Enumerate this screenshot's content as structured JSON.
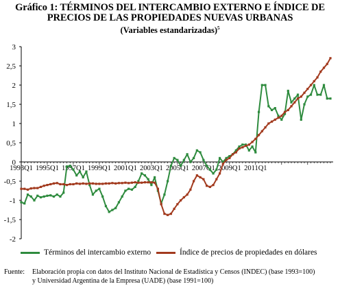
{
  "title": {
    "line1": "Gráfico 1: TÉRMINOS DEL INTERCAMBIO EXTERNO E ÍNDICE DE",
    "line2": "PRECIOS DE LAS PROPIEDADES NUEVAS URBANAS",
    "line3": "(Variables estandarizadas)",
    "footnote_mark": "5"
  },
  "legend": {
    "series1": "Términos del intercambio externo",
    "series2": "Índice de precios de propiedades en dólares"
  },
  "source": {
    "label": "Fuente:",
    "line1": "Elaboración propia con datos del Instituto Nacional de Estadística y Censos (INDEC) (base 1993=100)",
    "line2": "y Universidad Argentina de la Empresa (UADE) (base 1991=100)"
  },
  "colors": {
    "series1": "#2e8b3e",
    "series2": "#a23a1e"
  },
  "chart_data": {
    "type": "line",
    "ylim": [
      -2,
      3
    ],
    "yticks": [
      "3",
      "2,5",
      "2",
      "1,5",
      "1",
      "0,5",
      "0",
      "-0,5",
      "-1",
      "-1,5",
      "-2"
    ],
    "xticks": [
      "1993Q1",
      "1995Q1",
      "1997Q1",
      "1999Q1",
      "2001Q1",
      "2003Q1",
      "2005Q1",
      "2007Q1",
      "2009Q1",
      "2011Q1"
    ],
    "x_start": "1993Q1",
    "x_end": "2012Q2",
    "series": [
      {
        "name": "Términos del intercambio externo",
        "values": [
          -1.05,
          -1.08,
          -0.85,
          -0.9,
          -1.0,
          -0.88,
          -0.92,
          -0.9,
          -0.88,
          -0.87,
          -0.9,
          -0.85,
          -0.9,
          -0.8,
          -0.12,
          -0.1,
          -0.2,
          -0.35,
          -0.25,
          -0.4,
          -0.25,
          -0.6,
          -0.85,
          -0.75,
          -0.7,
          -0.9,
          -1.15,
          -1.3,
          -1.25,
          -1.2,
          -1.05,
          -0.9,
          -0.75,
          -0.7,
          -0.72,
          -0.65,
          -0.5,
          -0.3,
          -0.35,
          -0.45,
          -0.6,
          -0.4,
          -0.75,
          -1.08,
          -0.85,
          -0.5,
          -0.1,
          0.1,
          0.05,
          -0.1,
          0.05,
          0.2,
          0.0,
          0.1,
          0.3,
          0.25,
          0.05,
          -0.1,
          -0.2,
          -0.3,
          -0.2,
          0.1,
          0.0,
          0.1,
          0.15,
          0.2,
          0.3,
          0.4,
          0.45,
          0.45,
          0.3,
          0.4,
          0.25,
          1.3,
          2.0,
          2.0,
          1.45,
          1.35,
          1.4,
          1.2,
          1.1,
          1.25,
          1.85,
          1.55,
          1.65,
          1.75,
          1.1,
          1.5,
          1.7,
          1.75,
          2.0,
          1.75,
          1.75,
          2.0,
          1.65,
          1.65
        ],
        "color": "#2e8b3e"
      },
      {
        "name": "Índice de precios de propiedades en dólares",
        "values": [
          -0.7,
          -0.7,
          -0.72,
          -0.69,
          -0.68,
          -0.68,
          -0.65,
          -0.62,
          -0.6,
          -0.58,
          -0.56,
          -0.55,
          -0.58,
          -0.58,
          -0.6,
          -0.58,
          -0.58,
          -0.56,
          -0.57,
          -0.56,
          -0.57,
          -0.56,
          -0.56,
          -0.57,
          -0.57,
          -0.57,
          -0.56,
          -0.56,
          -0.55,
          -0.56,
          -0.55,
          -0.55,
          -0.54,
          -0.55,
          -0.54,
          -0.53,
          -0.54,
          -0.54,
          -0.53,
          -0.53,
          -0.53,
          -0.54,
          -0.7,
          -1.1,
          -1.35,
          -1.38,
          -1.35,
          -1.22,
          -1.1,
          -1.0,
          -0.92,
          -0.85,
          -0.72,
          -0.5,
          -0.35,
          -0.4,
          -0.45,
          -0.62,
          -0.65,
          -0.6,
          -0.45,
          -0.3,
          -0.05,
          0.05,
          0.1,
          0.2,
          0.25,
          0.35,
          0.38,
          0.42,
          0.45,
          0.52,
          0.6,
          0.7,
          0.8,
          0.9,
          1.0,
          1.05,
          1.1,
          1.15,
          1.2,
          1.3,
          1.35,
          1.45,
          1.55,
          1.65,
          1.7,
          1.8,
          1.9,
          2.0,
          2.1,
          2.2,
          2.35,
          2.45,
          2.55,
          2.7
        ],
        "color": "#a23a1e"
      }
    ]
  }
}
